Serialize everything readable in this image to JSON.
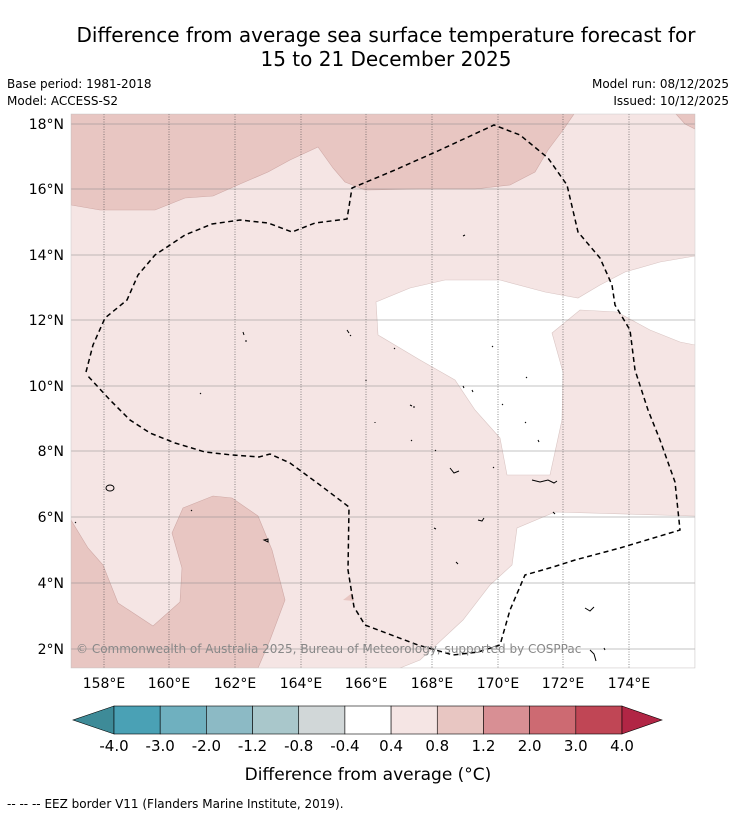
{
  "title": {
    "line1": "Difference from average sea surface temperature forecast for",
    "line2": "15 to 21 December 2025"
  },
  "meta": {
    "base_period": "Base period: 1981-2018",
    "model": "Model: ACCESS-S2",
    "model_run": "Model run: 08/12/2025",
    "issued": "Issued: 10/12/2025"
  },
  "map": {
    "lat_labels": [
      "18°N",
      "16°N",
      "14°N",
      "12°N",
      "10°N",
      "8°N",
      "6°N",
      "4°N",
      "2°N"
    ],
    "lon_labels": [
      "158°E",
      "160°E",
      "162°E",
      "164°E",
      "166°E",
      "168°E",
      "170°E",
      "172°E",
      "174°E"
    ],
    "copyright": "© Commonwealth of Australia 2025, Bureau of Meteorology, supported by COSPPac",
    "region_names": [
      "anomaly-band-0.4-0.8",
      "anomaly-band-0.8-1.2",
      "anomaly-band-neutral"
    ]
  },
  "colorbar": {
    "labels": [
      "-4.0",
      "-3.0",
      "-2.0",
      "-1.2",
      "-0.8",
      "-0.4",
      "0.4",
      "0.8",
      "1.2",
      "2.0",
      "3.0",
      "4.0"
    ],
    "colors": [
      "#4aa1b5",
      "#6fb0bf",
      "#8cbac5",
      "#a9c7cb",
      "#d1d7d8",
      "#ffffff",
      "#f5e5e4",
      "#e8c6c2",
      "#d88f94",
      "#cd6a72",
      "#c04655"
    ],
    "low_extend_color": "#3e8b98",
    "high_extend_color": "#b12645",
    "label": "Difference from average (°C)"
  },
  "footer": {
    "legend_symbol": "--  --  --",
    "legend_text": "EEZ border V11 (Flanders Marine Institute, 2019)."
  }
}
